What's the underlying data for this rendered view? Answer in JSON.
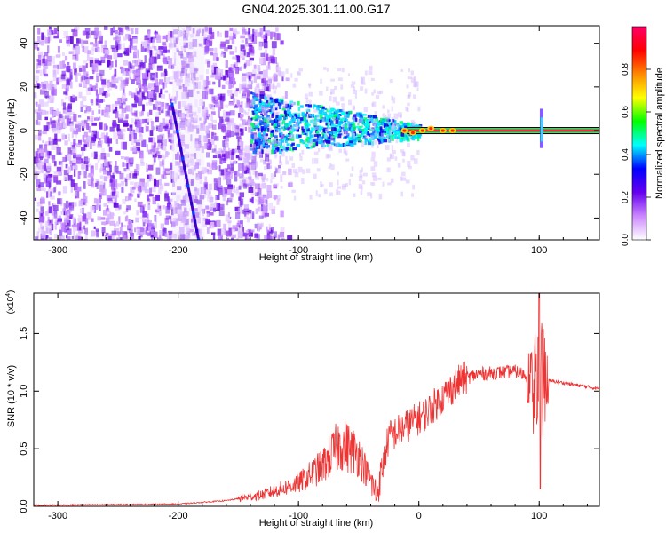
{
  "title": "GN04.2025.301.11.00.G17",
  "chart_data": [
    {
      "type": "heatmap",
      "xlabel": "Height of straight line (km)",
      "ylabel": "Frequency (Hz)",
      "xlim": [
        -320,
        150
      ],
      "ylim": [
        -50,
        48
      ],
      "xticks": [
        -300,
        -200,
        -100,
        0,
        100
      ],
      "yticks": [
        -40,
        -20,
        0,
        20,
        40
      ],
      "colorbar": {
        "label": "Normalized spectral amplitude",
        "range": [
          0,
          1
        ],
        "ticks": [
          "0.0",
          "0.2",
          "0.4",
          "0.6",
          "0.8"
        ],
        "colors": [
          "#ffffff",
          "#cc88ff",
          "#6600ee",
          "#0000ff",
          "#00ffff",
          "#00ff00",
          "#ffff00",
          "#ff8800",
          "#ff0000",
          "#ff0066"
        ]
      },
      "features": {
        "noise_region_x": [
          -320,
          -125
        ],
        "diagonal_trace": {
          "x_start": -205,
          "y_start": 12,
          "x_end": -183,
          "y_end": -50
        },
        "signal_line_y": 0,
        "signal_line_x": [
          -10,
          150
        ],
        "spike_x": 102
      }
    },
    {
      "type": "line",
      "xlabel": "Height of straight line (km)",
      "ylabel": "SNR (10 * v/v)",
      "y_multiplier": "(x10^4)",
      "xlim": [
        -320,
        150
      ],
      "ylim": [
        0,
        1.85
      ],
      "xticks": [
        -300,
        -200,
        -100,
        0,
        100
      ],
      "yticks": [
        "0.0",
        "0.5",
        "1.0",
        "1.5"
      ],
      "color": "#ee3333",
      "envelope": [
        {
          "x": -320,
          "y": 0.01
        },
        {
          "x": -200,
          "y": 0.02
        },
        {
          "x": -160,
          "y": 0.05
        },
        {
          "x": -130,
          "y": 0.1
        },
        {
          "x": -100,
          "y": 0.2
        },
        {
          "x": -80,
          "y": 0.35
        },
        {
          "x": -65,
          "y": 0.55
        },
        {
          "x": -50,
          "y": 0.45
        },
        {
          "x": -35,
          "y": 0.1
        },
        {
          "x": -25,
          "y": 0.6
        },
        {
          "x": -10,
          "y": 0.7
        },
        {
          "x": 5,
          "y": 0.8
        },
        {
          "x": 20,
          "y": 0.95
        },
        {
          "x": 35,
          "y": 1.1
        },
        {
          "x": 50,
          "y": 1.15
        },
        {
          "x": 80,
          "y": 1.17
        },
        {
          "x": 100,
          "y": 1.1
        },
        {
          "x": 115,
          "y": 1.08
        },
        {
          "x": 150,
          "y": 1.02
        }
      ],
      "spike": {
        "x": 100,
        "ymax": 1.85,
        "ymin": 0.15
      }
    }
  ]
}
